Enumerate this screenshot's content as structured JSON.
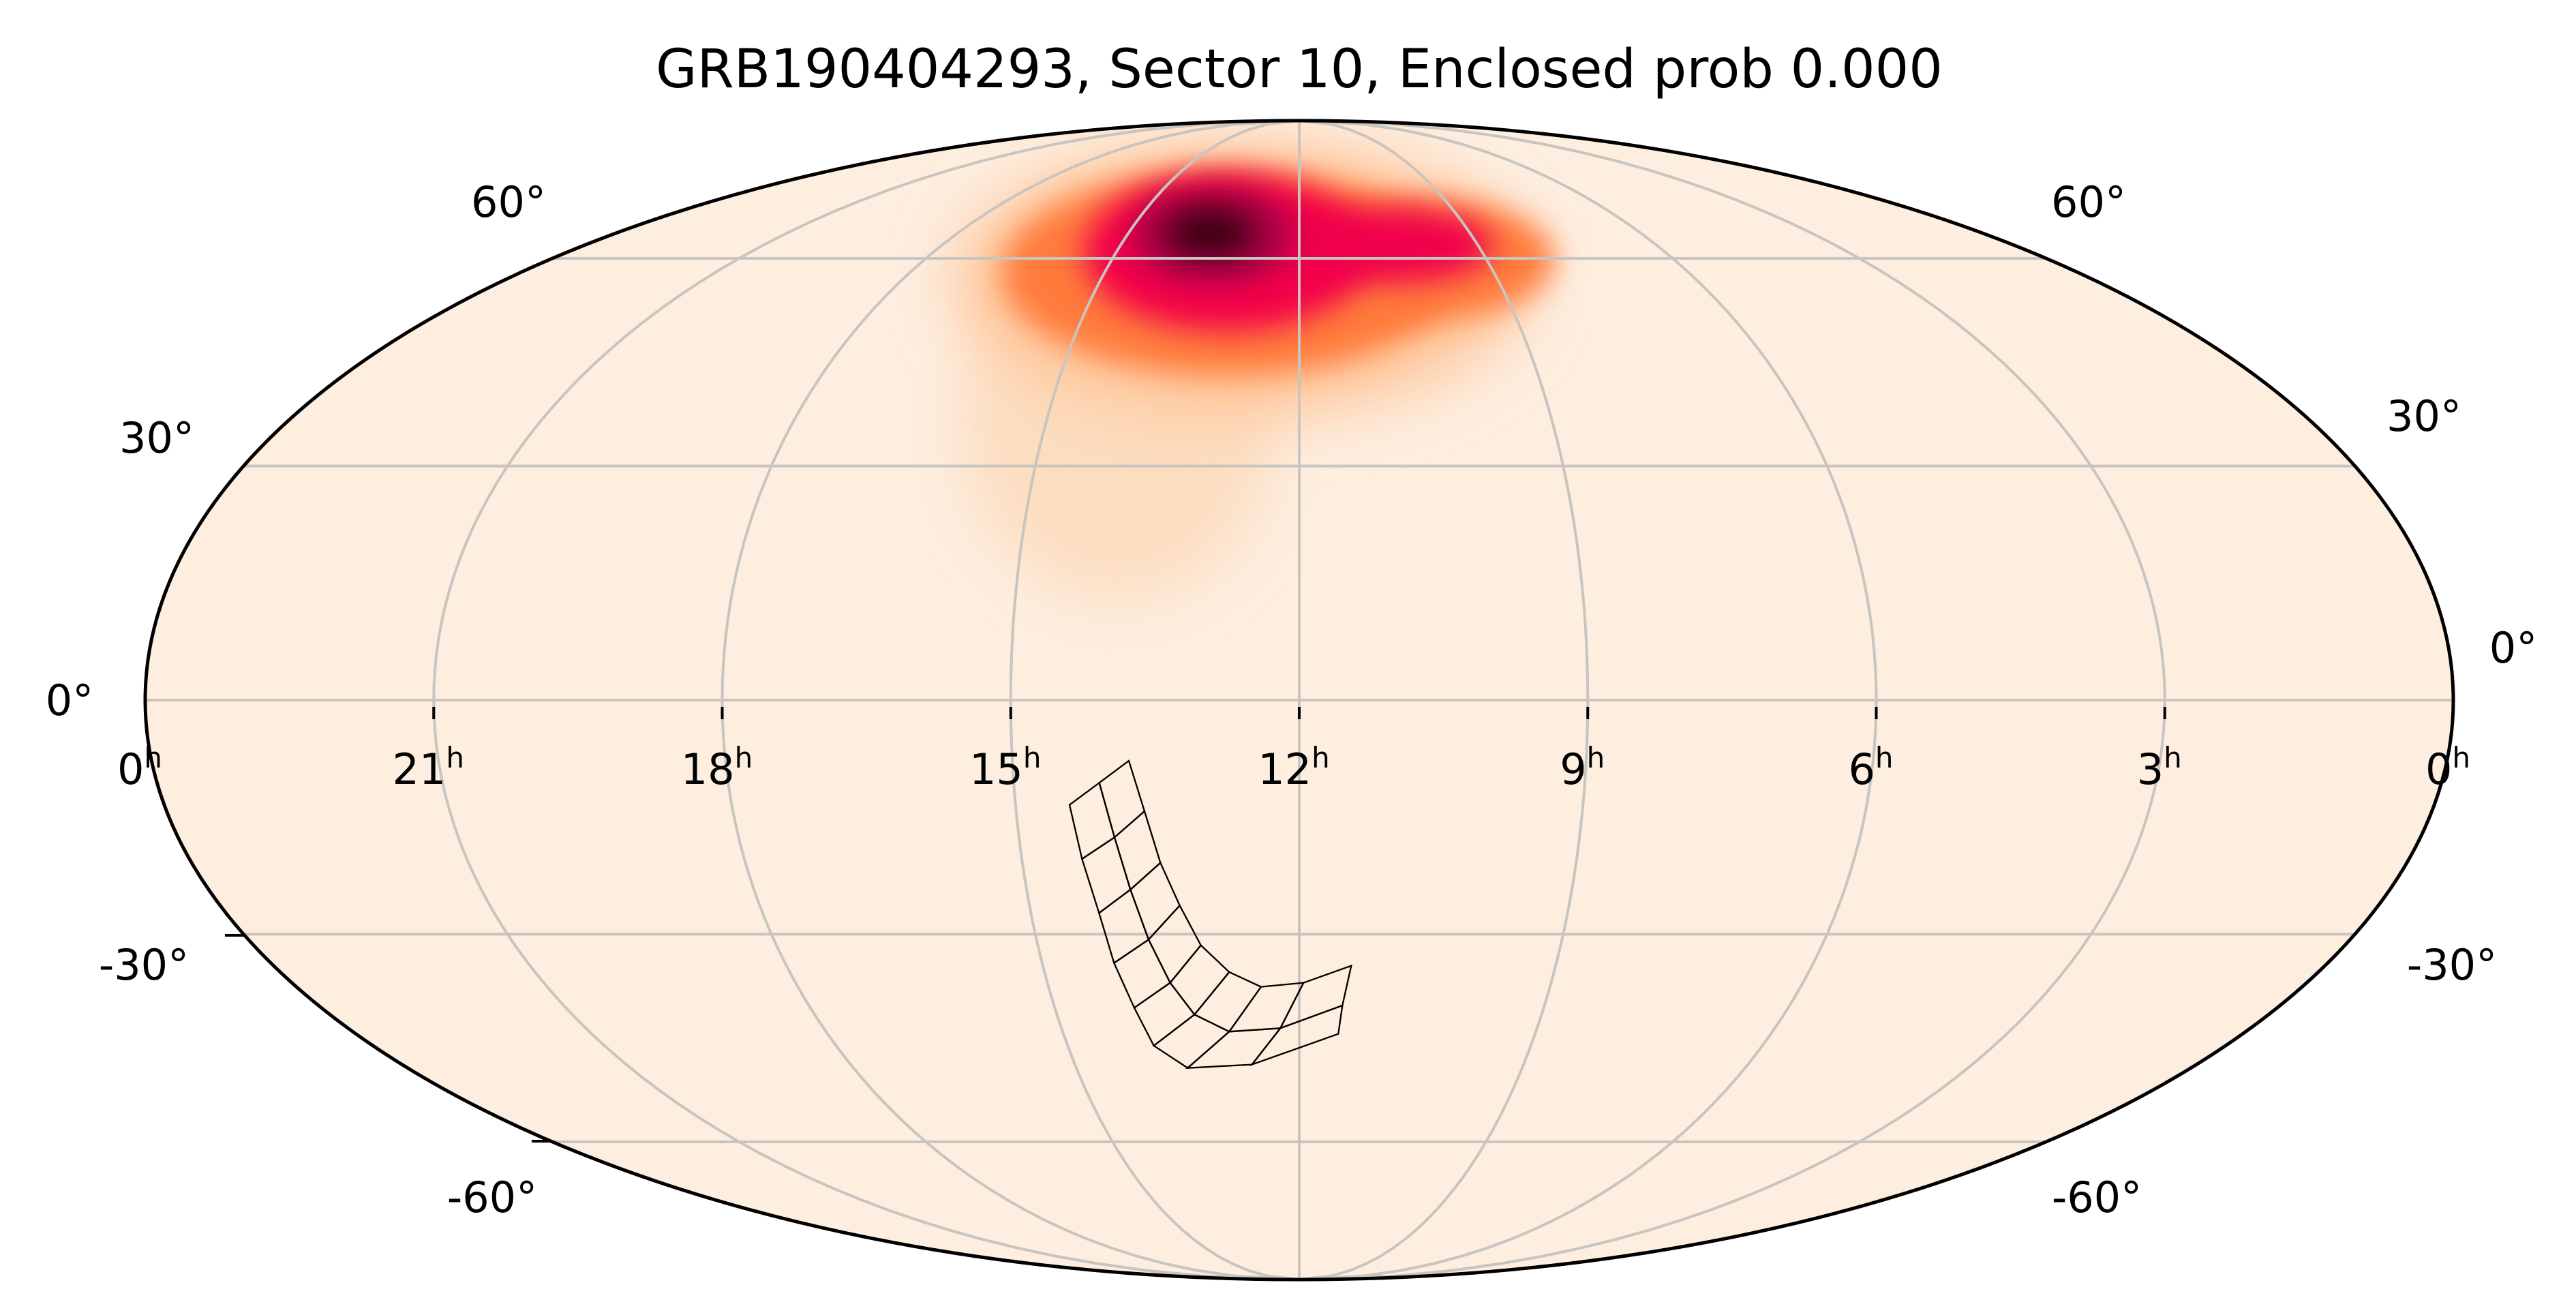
{
  "chart_data": {
    "type": "heatmap",
    "projection": "mollweide",
    "title": "GRB190404293, Sector 10, Enclosed prob 0.000",
    "colormap": "sequential light-peach to red to black",
    "background_color": "#fdeee0",
    "grid": true,
    "ra_tick_labels": [
      {
        "h": "0",
        "ra_deg": 360
      },
      {
        "h": "21",
        "ra_deg": 315
      },
      {
        "h": "18",
        "ra_deg": 270
      },
      {
        "h": "15",
        "ra_deg": 225
      },
      {
        "h": "12",
        "ra_deg": 180
      },
      {
        "h": "9",
        "ra_deg": 135
      },
      {
        "h": "6",
        "ra_deg": 90
      },
      {
        "h": "3",
        "ra_deg": 45
      },
      {
        "h": "0",
        "ra_deg": 0
      }
    ],
    "ra_unit_superscript": "h",
    "dec_tick_labels": [
      "60°",
      "30°",
      "0°",
      "-30°",
      "-60°"
    ],
    "probability_peak": {
      "ra_deg": 158,
      "dec_deg": 48
    },
    "footprint": "TESS sector 10 camera/CCD outlines (2 columns × 8 rows)"
  }
}
